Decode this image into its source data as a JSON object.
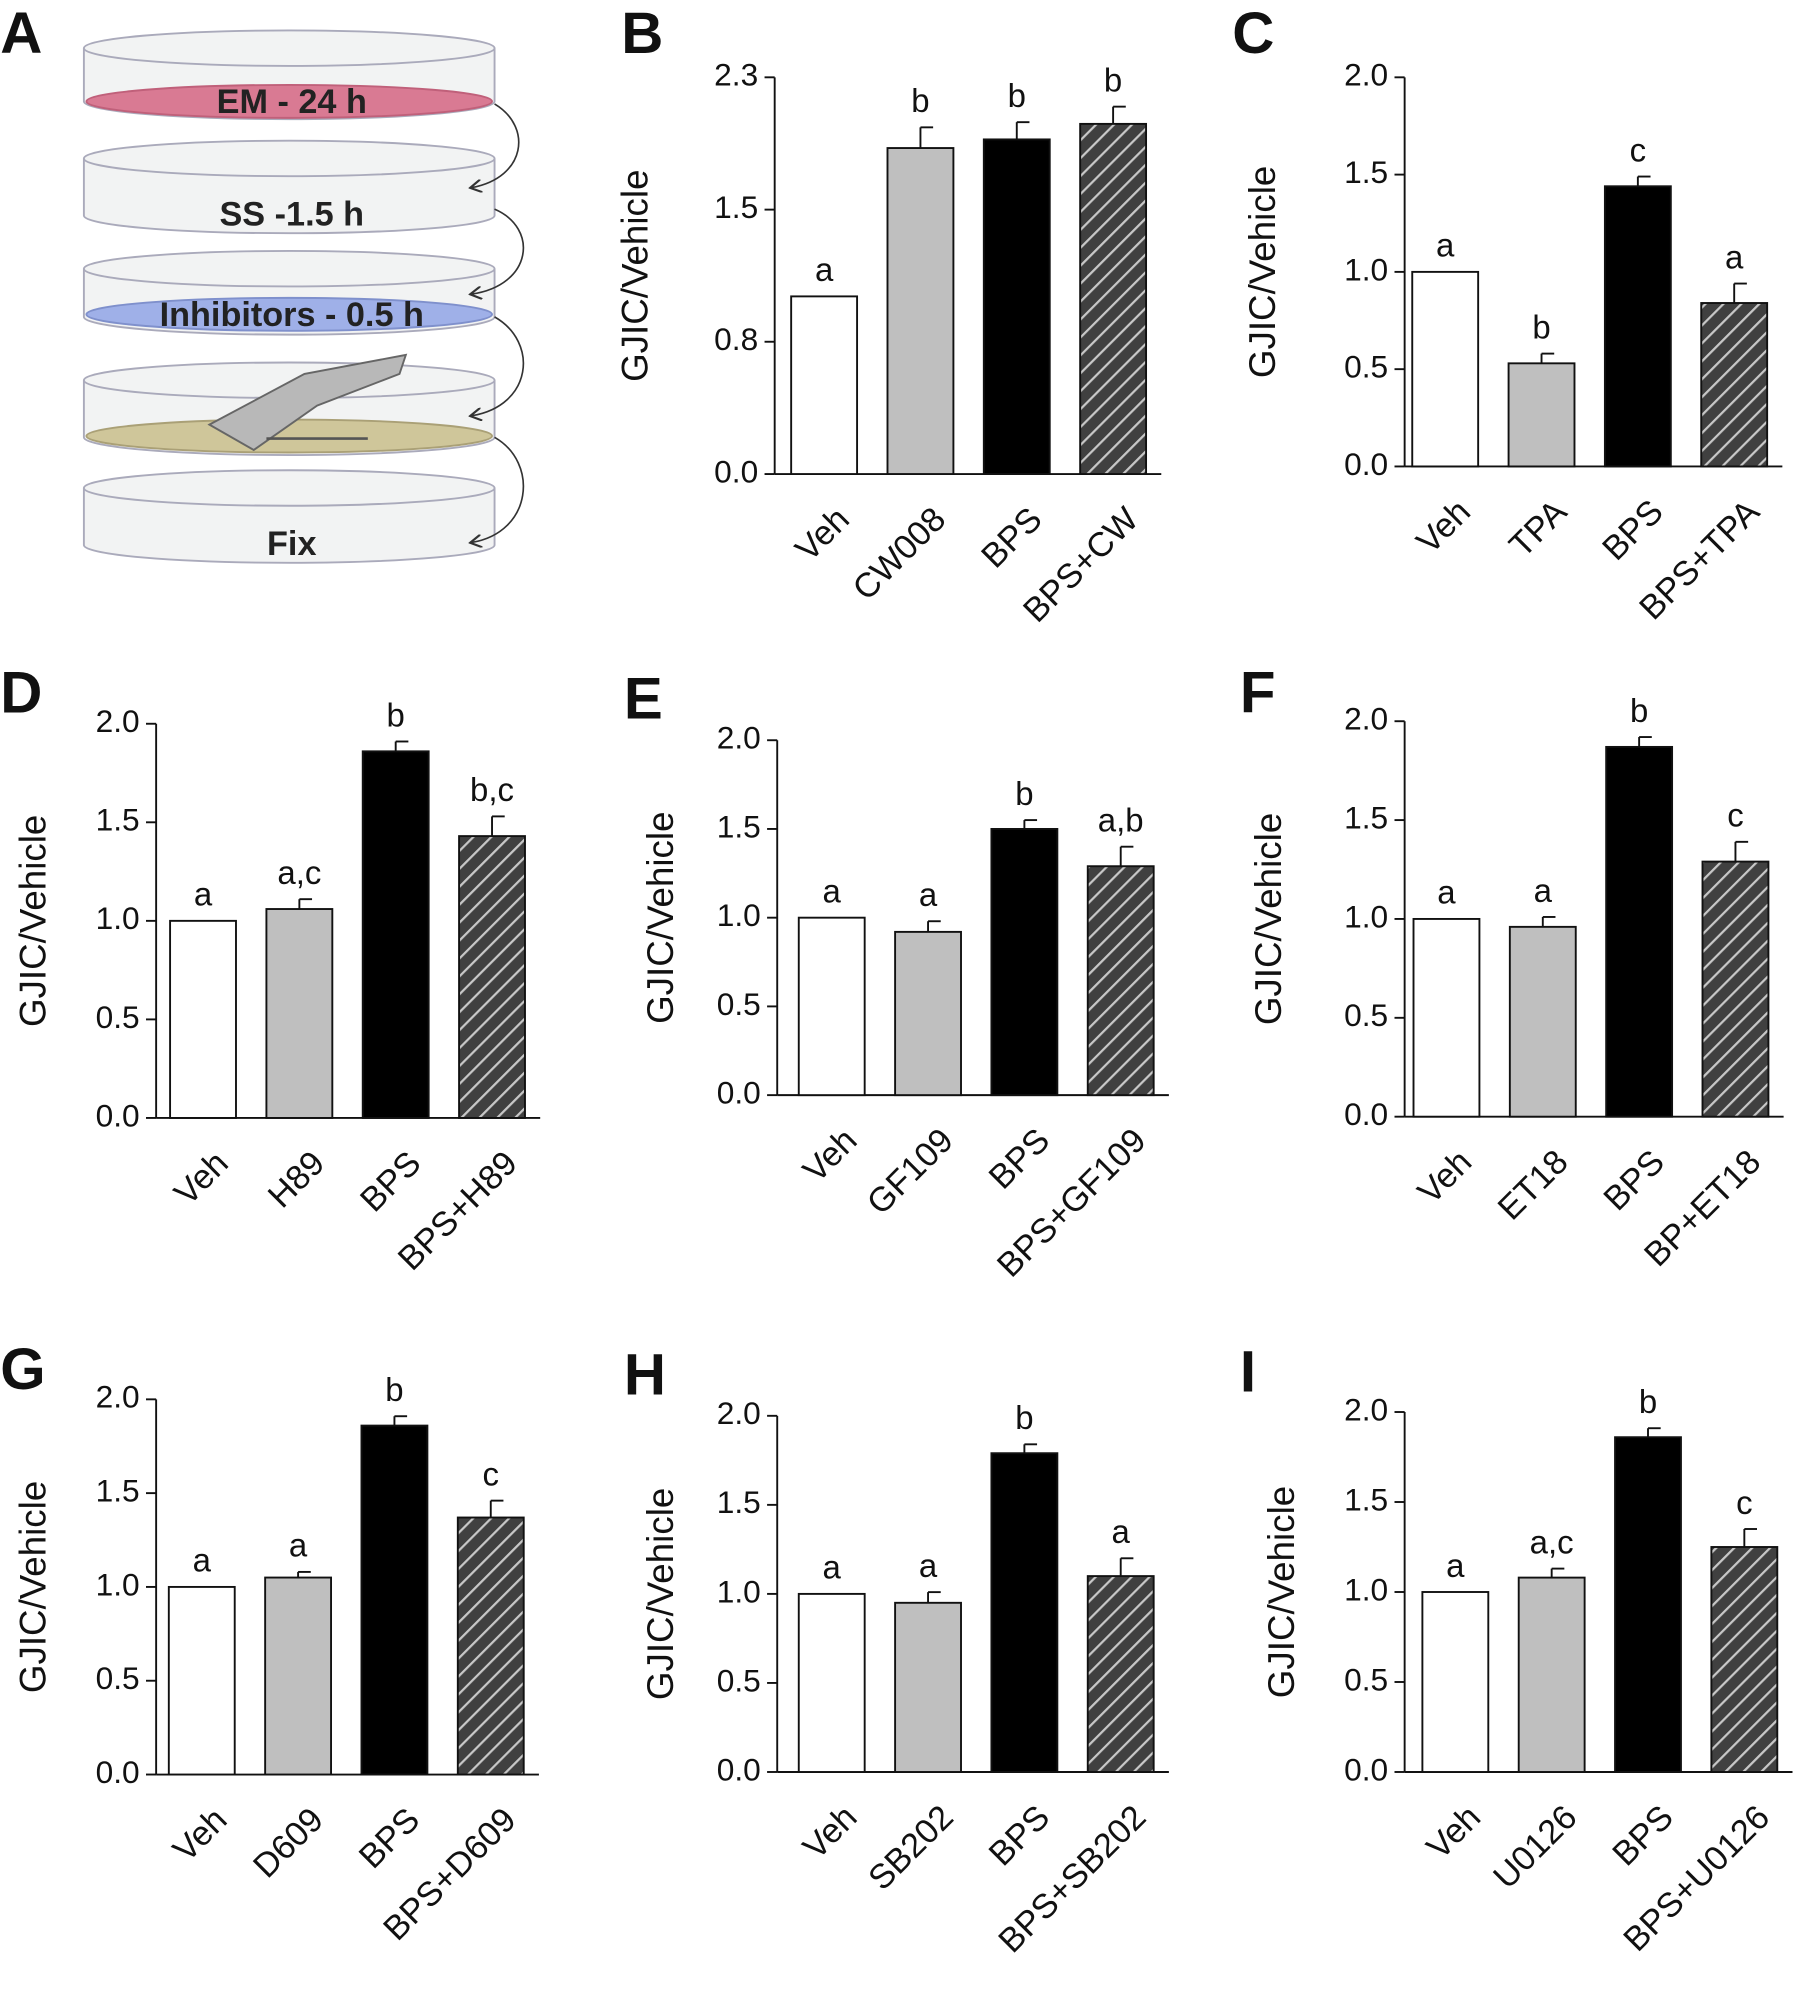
{
  "diagram": {
    "panel_label": "A",
    "steps": [
      "EM - 24 h",
      "SS -1.5 h",
      "Inhibitors - 0.5 h",
      "Fix"
    ]
  },
  "chart_data": [
    {
      "type": "bar",
      "panel_label": "B",
      "ylabel": "GJIC/Vehicle",
      "categories": [
        "Veh",
        "CW008",
        "BPS",
        "BPS+CW"
      ],
      "values": [
        1.03,
        1.89,
        1.94,
        2.03
      ],
      "errors": [
        0,
        0.12,
        0.1,
        0.1
      ],
      "letters": [
        "a",
        "b",
        "b",
        "b"
      ],
      "colors": [
        "#ffffff",
        "#bfbfbf",
        "#000000",
        "#404040"
      ],
      "hatched": [
        false,
        false,
        false,
        true
      ],
      "ylim": [
        0,
        2.3
      ],
      "yticks": [
        {
          "value": 0,
          "label": "0.0"
        },
        {
          "value": 0.767,
          "label": "0.8"
        },
        {
          "value": 1.533,
          "label": "1.5"
        },
        2.3
      ]
    },
    {
      "type": "bar",
      "panel_label": "C",
      "ylabel": "GJIC/Vehicle",
      "categories": [
        "Veh",
        "TPA",
        "BPS",
        "BPS+TPA"
      ],
      "values": [
        1.0,
        0.53,
        1.44,
        0.84
      ],
      "errors": [
        0,
        0.05,
        0.05,
        0.1
      ],
      "letters": [
        "a",
        "b",
        "c",
        "a"
      ],
      "colors": [
        "#ffffff",
        "#bfbfbf",
        "#000000",
        "#404040"
      ],
      "hatched": [
        false,
        false,
        false,
        true
      ],
      "ylim": [
        0,
        2
      ],
      "yticks": [
        {
          "value": 0,
          "label": "0.0"
        },
        0.5,
        {
          "value": 1,
          "label": "1.0"
        },
        1.5,
        {
          "value": 2,
          "label": "2.0"
        }
      ]
    },
    {
      "type": "bar",
      "panel_label": "D",
      "ylabel": "GJIC/Vehicle",
      "categories": [
        "Veh",
        "H89",
        "BPS",
        "BPS+H89"
      ],
      "values": [
        1.0,
        1.06,
        1.86,
        1.43
      ],
      "errors": [
        0,
        0.05,
        0.05,
        0.1
      ],
      "letters": [
        "a",
        "a,c",
        "b",
        "b,c"
      ],
      "colors": [
        "#ffffff",
        "#bfbfbf",
        "#000000",
        "#404040"
      ],
      "hatched": [
        false,
        false,
        false,
        true
      ],
      "ylim": [
        0,
        2
      ],
      "yticks": [
        {
          "value": 0,
          "label": "0.0"
        },
        0.5,
        {
          "value": 1,
          "label": "1.0"
        },
        1.5,
        {
          "value": 2,
          "label": "2.0"
        }
      ]
    },
    {
      "type": "bar",
      "panel_label": "E",
      "ylabel": "GJIC/Vehicle",
      "categories": [
        "Veh",
        "GF109",
        "BPS",
        "BPS+GF109"
      ],
      "values": [
        1.0,
        0.92,
        1.5,
        1.29
      ],
      "errors": [
        0,
        0.06,
        0.05,
        0.11
      ],
      "letters": [
        "a",
        "a",
        "b",
        "a,b"
      ],
      "colors": [
        "#ffffff",
        "#bfbfbf",
        "#000000",
        "#404040"
      ],
      "hatched": [
        false,
        false,
        false,
        true
      ],
      "ylim": [
        0,
        2
      ],
      "yticks": [
        {
          "value": 0,
          "label": "0.0"
        },
        0.5,
        {
          "value": 1,
          "label": "1.0"
        },
        1.5,
        {
          "value": 2,
          "label": "2.0"
        }
      ]
    },
    {
      "type": "bar",
      "panel_label": "F",
      "ylabel": "GJIC/Vehicle",
      "categories": [
        "Veh",
        "ET18",
        "BPS",
        "BP+ET18"
      ],
      "values": [
        1.0,
        0.96,
        1.87,
        1.29
      ],
      "errors": [
        0,
        0.05,
        0.05,
        0.1
      ],
      "letters": [
        "a",
        "a",
        "b",
        "c"
      ],
      "colors": [
        "#ffffff",
        "#bfbfbf",
        "#000000",
        "#404040"
      ],
      "hatched": [
        false,
        false,
        false,
        true
      ],
      "ylim": [
        0,
        2
      ],
      "yticks": [
        {
          "value": 0,
          "label": "0.0"
        },
        0.5,
        {
          "value": 1,
          "label": "1.0"
        },
        1.5,
        {
          "value": 2,
          "label": "2.0"
        }
      ]
    },
    {
      "type": "bar",
      "panel_label": "G",
      "ylabel": "GJIC/Vehicle",
      "categories": [
        "Veh",
        "D609",
        "BPS",
        "BPS+D609"
      ],
      "values": [
        1.0,
        1.05,
        1.86,
        1.37
      ],
      "errors": [
        0,
        0.03,
        0.05,
        0.09
      ],
      "letters": [
        "a",
        "a",
        "b",
        "c"
      ],
      "colors": [
        "#ffffff",
        "#bfbfbf",
        "#000000",
        "#404040"
      ],
      "hatched": [
        false,
        false,
        false,
        true
      ],
      "ylim": [
        0,
        2
      ],
      "yticks": [
        {
          "value": 0,
          "label": "0.0"
        },
        0.5,
        {
          "value": 1,
          "label": "1.0"
        },
        1.5,
        {
          "value": 2,
          "label": "2.0"
        }
      ]
    },
    {
      "type": "bar",
      "panel_label": "H",
      "ylabel": "GJIC/Vehicle",
      "categories": [
        "Veh",
        "SB202",
        "BPS",
        "BPS+SB202"
      ],
      "values": [
        1.0,
        0.95,
        1.79,
        1.1
      ],
      "errors": [
        0,
        0.06,
        0.05,
        0.1
      ],
      "letters": [
        "a",
        "a",
        "b",
        "a"
      ],
      "colors": [
        "#ffffff",
        "#bfbfbf",
        "#000000",
        "#404040"
      ],
      "hatched": [
        false,
        false,
        false,
        true
      ],
      "ylim": [
        0,
        2
      ],
      "yticks": [
        {
          "value": 0,
          "label": "0.0"
        },
        0.5,
        {
          "value": 1,
          "label": "1.0"
        },
        1.5,
        {
          "value": 2,
          "label": "2.0"
        }
      ]
    },
    {
      "type": "bar",
      "panel_label": "I",
      "ylabel": "GJIC/Vehicle",
      "categories": [
        "Veh",
        "U0126",
        "BPS",
        "BPS+U0126"
      ],
      "values": [
        1.0,
        1.08,
        1.86,
        1.25
      ],
      "errors": [
        0,
        0.05,
        0.05,
        0.1
      ],
      "letters": [
        "a",
        "a,c",
        "b",
        "c"
      ],
      "colors": [
        "#ffffff",
        "#bfbfbf",
        "#000000",
        "#404040"
      ],
      "hatched": [
        false,
        false,
        false,
        true
      ],
      "ylim": [
        0,
        2
      ],
      "yticks": [
        {
          "value": 0,
          "label": "0.0"
        },
        0.5,
        {
          "value": 1,
          "label": "1.0"
        },
        1.5,
        {
          "value": 2,
          "label": "2.0"
        }
      ]
    }
  ]
}
